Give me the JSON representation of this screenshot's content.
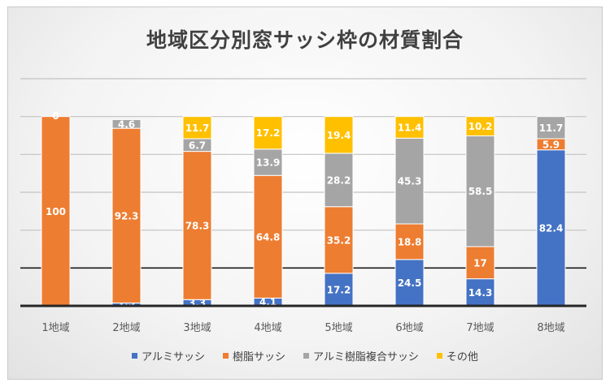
{
  "chart_data": {
    "type": "bar",
    "stacked": true,
    "title": "地域区分別窓サッシ枠の材質割合",
    "categories": [
      "1地域",
      "2地域",
      "3地域",
      "4地域",
      "5地域",
      "6地域",
      "7地域",
      "8地域"
    ],
    "series": [
      {
        "name": "アルミサッシ",
        "color": "#4472c4",
        "values": [
          0,
          1.5,
          3.3,
          4.1,
          17.2,
          24.5,
          14.3,
          82.4
        ],
        "labels": [
          "",
          "1.5",
          "3.3",
          "4.1",
          "17.2",
          "24.5",
          "14.3",
          "82.4"
        ]
      },
      {
        "name": "樹脂サッシ",
        "color": "#ed7d31",
        "values": [
          100,
          92.3,
          78.3,
          64.8,
          35.2,
          18.8,
          17,
          5.9
        ],
        "labels": [
          "100",
          "92.3",
          "78.3",
          "64.8",
          "35.2",
          "18.8",
          "17",
          "5.9"
        ]
      },
      {
        "name": "アルミ樹脂複合サッシ",
        "color": "#a5a5a5",
        "values": [
          0,
          4.6,
          6.7,
          13.9,
          28.2,
          45.3,
          58.5,
          11.7
        ],
        "labels": [
          "0",
          "4.6",
          "6.7",
          "13.9",
          "28.2",
          "45.3",
          "58.5",
          "11.7"
        ]
      },
      {
        "name": "その他",
        "color": "#ffc000",
        "values": [
          0,
          0,
          11.7,
          17.2,
          19.4,
          11.4,
          10.2,
          0
        ],
        "labels": [
          "",
          "",
          "11.7",
          "17.2",
          "19.4",
          "11.4",
          "10.2",
          ""
        ]
      }
    ],
    "ylim": [
      0,
      120
    ],
    "grid": true,
    "legend_position": "bottom"
  }
}
